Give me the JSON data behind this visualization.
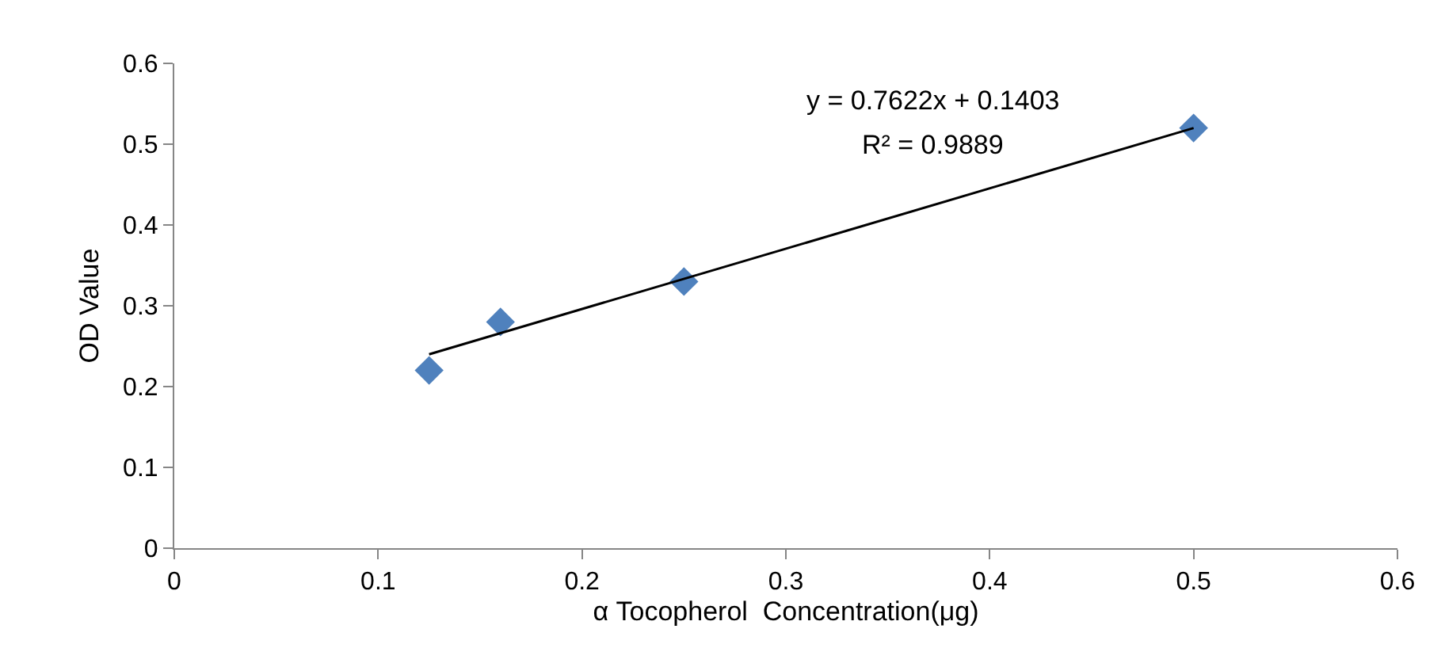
{
  "chart_data": {
    "type": "scatter",
    "xlabel": "α Tocopherol  Concentration(μg)",
    "ylabel": "OD Value",
    "xlim": [
      0,
      0.6
    ],
    "xticks": [
      0,
      0.1,
      0.2,
      0.3,
      0.4,
      0.5,
      0.6
    ],
    "ylim": [
      0,
      0.6
    ],
    "yticks": [
      0,
      0.1,
      0.2,
      0.3,
      0.4,
      0.5,
      0.6
    ],
    "series": [
      {
        "marker": "diamond",
        "color": "#4f81bd",
        "x": [
          0.125,
          0.16,
          0.25,
          0.5
        ],
        "values": [
          0.22,
          0.28,
          0.33,
          0.52
        ]
      },
      {
        "type": "line",
        "color": "#000000",
        "x": [
          0.125,
          0.5
        ],
        "values": [
          0.24,
          0.52
        ],
        "line_style": "solid",
        "marker": "none"
      }
    ],
    "annotations": [
      "y = 0.7622x + 0.1403",
      "R² = 0.9889"
    ]
  }
}
